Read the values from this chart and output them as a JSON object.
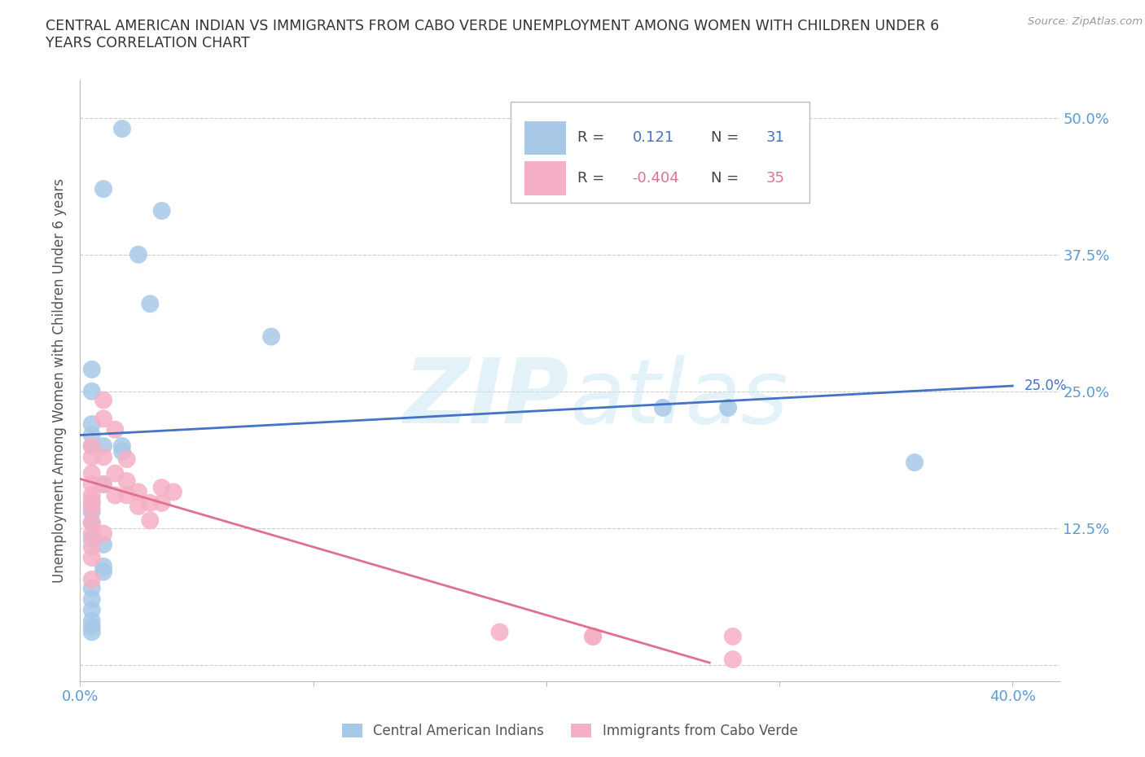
{
  "title_line1": "CENTRAL AMERICAN INDIAN VS IMMIGRANTS FROM CABO VERDE UNEMPLOYMENT AMONG WOMEN WITH CHILDREN UNDER 6",
  "title_line2": "YEARS CORRELATION CHART",
  "source": "Source: ZipAtlas.com",
  "ylabel": "Unemployment Among Women with Children Under 6 years",
  "xlim": [
    0.0,
    0.42
  ],
  "ylim": [
    -0.015,
    0.535
  ],
  "yticks": [
    0.0,
    0.125,
    0.25,
    0.375,
    0.5
  ],
  "ytick_labels": [
    "",
    "12.5%",
    "25.0%",
    "37.5%",
    "50.0%"
  ],
  "xticks": [
    0.0,
    0.1,
    0.2,
    0.3,
    0.4
  ],
  "xtick_labels": [
    "0.0%",
    "",
    "",
    "",
    "40.0%"
  ],
  "blue_color": "#a8c8e8",
  "pink_color": "#f5b0c5",
  "blue_line_color": "#4472c4",
  "pink_line_color": "#e07090",
  "axis_color": "#5b9bd5",
  "blue_points_x": [
    0.018,
    0.035,
    0.01,
    0.025,
    0.03,
    0.082,
    0.005,
    0.005,
    0.005,
    0.005,
    0.005,
    0.01,
    0.018,
    0.018,
    0.01,
    0.005,
    0.005,
    0.005,
    0.25,
    0.005,
    0.01,
    0.01,
    0.01,
    0.005,
    0.005,
    0.005,
    0.278,
    0.358,
    0.005,
    0.005,
    0.005
  ],
  "blue_points_y": [
    0.49,
    0.415,
    0.435,
    0.375,
    0.33,
    0.3,
    0.27,
    0.25,
    0.22,
    0.21,
    0.2,
    0.2,
    0.2,
    0.195,
    0.165,
    0.148,
    0.14,
    0.13,
    0.235,
    0.115,
    0.11,
    0.09,
    0.085,
    0.07,
    0.06,
    0.05,
    0.235,
    0.185,
    0.04,
    0.035,
    0.03
  ],
  "pink_points_x": [
    0.005,
    0.005,
    0.005,
    0.005,
    0.005,
    0.005,
    0.005,
    0.005,
    0.005,
    0.005,
    0.005,
    0.005,
    0.01,
    0.01,
    0.01,
    0.01,
    0.015,
    0.015,
    0.015,
    0.02,
    0.02,
    0.02,
    0.025,
    0.025,
    0.03,
    0.03,
    0.035,
    0.035,
    0.04,
    0.18,
    0.22,
    0.22,
    0.28,
    0.28,
    0.01
  ],
  "pink_points_y": [
    0.2,
    0.19,
    0.175,
    0.165,
    0.155,
    0.15,
    0.143,
    0.13,
    0.12,
    0.108,
    0.098,
    0.078,
    0.225,
    0.19,
    0.165,
    0.12,
    0.215,
    0.175,
    0.155,
    0.188,
    0.168,
    0.155,
    0.158,
    0.145,
    0.148,
    0.132,
    0.162,
    0.148,
    0.158,
    0.03,
    0.026,
    0.026,
    0.026,
    0.005,
    0.242
  ],
  "blue_trend_x": [
    0.0,
    0.4
  ],
  "blue_trend_y": [
    0.21,
    0.255
  ],
  "pink_trend_x": [
    0.0,
    0.27
  ],
  "pink_trend_y": [
    0.17,
    0.002
  ]
}
